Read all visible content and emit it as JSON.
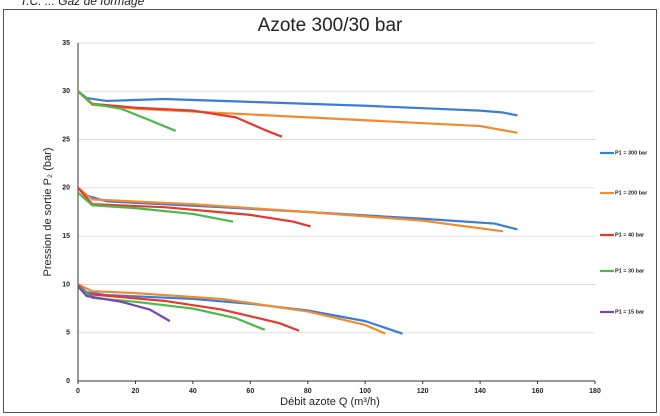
{
  "page_note": "T.C. ... Gaz de formage",
  "chart_data": {
    "type": "line",
    "title": "Azote 300/30 bar",
    "y_label": "Pression de sortie P₂ (bar)",
    "x_label": "Débit azote Q (m³/h)",
    "xlim": [
      0,
      180
    ],
    "xticks": [
      0,
      20,
      40,
      60,
      80,
      100,
      120,
      140,
      160,
      180
    ],
    "ylim": [
      0,
      35
    ],
    "yticks": [
      0,
      5,
      10,
      15,
      20,
      25,
      30,
      35
    ],
    "grid": true,
    "legend": "right",
    "series": [
      {
        "name": "P1 = 300 bar",
        "color": "#3a7dd8",
        "x": [
          0,
          3,
          10,
          30,
          60,
          100,
          140,
          148,
          153,
          null,
          0,
          3,
          10,
          50,
          80,
          120,
          145,
          153,
          null,
          0,
          3,
          10,
          40,
          60,
          80,
          100,
          113
        ],
        "values": [
          30,
          29.3,
          29,
          29.2,
          28.9,
          28.5,
          28,
          27.8,
          27.5,
          null,
          20,
          19.2,
          18.6,
          18,
          17.5,
          16.8,
          16.3,
          15.7,
          null,
          10,
          9.2,
          8.9,
          8.5,
          8,
          7.3,
          6.2,
          4.9
        ]
      },
      {
        "name": "P1 = 200 bar",
        "color": "#f28a2e",
        "x": [
          0,
          5,
          20,
          60,
          100,
          140,
          153,
          null,
          0,
          5,
          40,
          80,
          120,
          148,
          null,
          0,
          5,
          20,
          50,
          80,
          100,
          107
        ],
        "values": [
          30,
          28.6,
          28.2,
          27.6,
          27,
          26.4,
          25.7,
          null,
          20,
          18.8,
          18.3,
          17.5,
          16.6,
          15.5,
          null,
          10,
          9.3,
          9.1,
          8.5,
          7.2,
          5.8,
          4.9
        ]
      },
      {
        "name": "P1 = 40 bar",
        "color": "#e8382c",
        "x": [
          0,
          5,
          20,
          40,
          55,
          65,
          71,
          null,
          0,
          5,
          30,
          60,
          75,
          81,
          null,
          0,
          3,
          30,
          50,
          70,
          77
        ],
        "values": [
          30,
          28.7,
          28.3,
          28,
          27.3,
          26,
          25.3,
          null,
          20,
          18.3,
          18,
          17.2,
          16.5,
          16,
          null,
          10,
          9,
          8.3,
          7.4,
          6,
          5.2
        ]
      },
      {
        "name": "P1 = 30 bar",
        "color": "#4cb848",
        "x": [
          0,
          5,
          15,
          25,
          34,
          null,
          0,
          5,
          20,
          40,
          54,
          null,
          0,
          5,
          20,
          40,
          55,
          65
        ],
        "values": [
          30,
          28.7,
          28.2,
          27,
          25.9,
          null,
          19.5,
          18.2,
          17.9,
          17.3,
          16.5,
          null,
          9.8,
          8.6,
          8.2,
          7.5,
          6.5,
          5.3
        ]
      },
      {
        "name": "P1 = 15 bar",
        "color": "#7a45b0",
        "x": [
          0,
          3,
          15,
          25,
          32
        ],
        "values": [
          9.8,
          8.8,
          8.2,
          7.4,
          6.2
        ]
      }
    ]
  }
}
